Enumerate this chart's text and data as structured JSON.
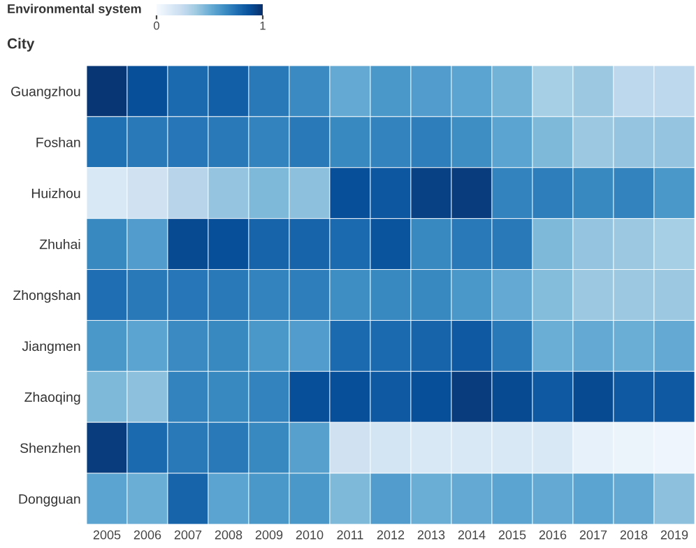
{
  "chart_data": {
    "type": "heatmap",
    "clabel": "Environmental system",
    "ylabel": "City",
    "categories": [
      "2005",
      "2006",
      "2007",
      "2008",
      "2009",
      "2010",
      "2011",
      "2012",
      "2013",
      "2014",
      "2015",
      "2016",
      "2017",
      "2018",
      "2019"
    ],
    "y_categories": [
      "Guangzhou",
      "Foshan",
      "Huizhou",
      "Zhuhai",
      "Zhongshan",
      "Jiangmen",
      "Zhaoqing",
      "Shenzhen",
      "Dongguan"
    ],
    "cells": [
      [
        0.98,
        0.88,
        0.78,
        0.82,
        0.72,
        0.65,
        0.52,
        0.6,
        0.58,
        0.55,
        0.48,
        0.35,
        0.38,
        0.28,
        0.28
      ],
      [
        0.75,
        0.72,
        0.73,
        0.72,
        0.68,
        0.72,
        0.66,
        0.68,
        0.7,
        0.64,
        0.55,
        0.45,
        0.38,
        0.4,
        0.4
      ],
      [
        0.15,
        0.2,
        0.3,
        0.4,
        0.45,
        0.42,
        0.88,
        0.85,
        0.93,
        0.95,
        0.68,
        0.7,
        0.66,
        0.68,
        0.6
      ],
      [
        0.66,
        0.58,
        0.9,
        0.88,
        0.8,
        0.8,
        0.78,
        0.86,
        0.66,
        0.72,
        0.72,
        0.45,
        0.4,
        0.38,
        0.35
      ],
      [
        0.76,
        0.72,
        0.73,
        0.72,
        0.68,
        0.7,
        0.64,
        0.66,
        0.66,
        0.6,
        0.52,
        0.44,
        0.38,
        0.38,
        0.38
      ],
      [
        0.6,
        0.55,
        0.65,
        0.66,
        0.6,
        0.58,
        0.78,
        0.78,
        0.8,
        0.84,
        0.72,
        0.5,
        0.52,
        0.5,
        0.52
      ],
      [
        0.45,
        0.42,
        0.68,
        0.66,
        0.68,
        0.88,
        0.88,
        0.84,
        0.88,
        0.95,
        0.9,
        0.84,
        0.9,
        0.84,
        0.84
      ],
      [
        0.95,
        0.78,
        0.72,
        0.72,
        0.66,
        0.56,
        0.2,
        0.18,
        0.15,
        0.15,
        0.15,
        0.15,
        0.08,
        0.06,
        0.05
      ],
      [
        0.55,
        0.5,
        0.8,
        0.55,
        0.6,
        0.6,
        0.45,
        0.58,
        0.5,
        0.52,
        0.55,
        0.52,
        0.55,
        0.52,
        0.42
      ]
    ],
    "clim": [
      0,
      1
    ],
    "cticks": [
      0,
      1
    ]
  }
}
